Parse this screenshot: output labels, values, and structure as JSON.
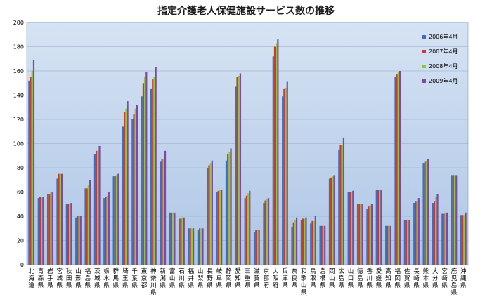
{
  "chart_data": {
    "type": "bar",
    "title": "指定介護老人保健施設サービス数の推移",
    "xlabel": "",
    "ylabel": "",
    "ylim": [
      0,
      200
    ],
    "yticks": [
      "0",
      "20",
      "40",
      "60",
      "80",
      "100",
      "120",
      "140",
      "160",
      "180",
      "200"
    ],
    "grid": true,
    "legend_position": "top-right",
    "categories": [
      "北海道",
      "青森県",
      "岩手県",
      "宮城県",
      "秋田県",
      "山形県",
      "福島県",
      "茨城県",
      "栃木県",
      "群馬県",
      "埼玉県",
      "千葉県",
      "東京都",
      "神奈川県",
      "新潟県",
      "富山県",
      "石川県",
      "福井県",
      "山梨県",
      "長野県",
      "岐阜県",
      "静岡県",
      "愛知県",
      "三重県",
      "滋賀県",
      "京都府",
      "大阪府",
      "兵庫県",
      "奈良県",
      "和歌山県",
      "鳥取県",
      "島根県",
      "岡山県",
      "広島県",
      "山口県",
      "徳島県",
      "香川県",
      "愛媛県",
      "高知県",
      "福岡県",
      "佐賀県",
      "長崎県",
      "熊本県",
      "大分県",
      "宮崎県",
      "鹿児島県",
      "沖縄県"
    ],
    "series": [
      {
        "name": "2006年4月",
        "color": "#3b6fc4",
        "values": [
          152,
          55,
          58,
          71,
          50,
          39,
          63,
          91,
          55,
          73,
          114,
          120,
          139,
          145,
          85,
          43,
          38,
          30,
          29,
          80,
          60,
          86,
          147,
          55,
          27,
          51,
          172,
          139,
          31,
          37,
          34,
          32,
          71,
          95,
          60,
          50,
          46,
          62,
          32,
          155,
          37,
          51,
          84,
          51,
          42,
          74,
          41
        ]
      },
      {
        "name": "2007年4月",
        "color": "#c43b30",
        "values": [
          155,
          56,
          58,
          75,
          50,
          40,
          63,
          94,
          56,
          73,
          126,
          124,
          150,
          153,
          87,
          43,
          38,
          30,
          30,
          82,
          61,
          91,
          155,
          57,
          29,
          53,
          180,
          145,
          35,
          38,
          36,
          32,
          72,
          99,
          60,
          50,
          48,
          62,
          32,
          157,
          37,
          52,
          85,
          52,
          42,
          74,
          41
        ]
      },
      {
        "name": "2008年4月",
        "color": "#97c23c",
        "values": [
          160,
          56,
          60,
          75,
          50,
          40,
          66,
          94,
          57,
          74,
          129,
          129,
          155,
          155,
          87,
          43,
          39,
          30,
          30,
          84,
          62,
          93,
          156,
          59,
          29,
          54,
          183,
          146,
          37,
          38,
          36,
          32,
          73,
          99,
          60,
          50,
          49,
          62,
          32,
          159,
          37,
          52,
          86,
          56,
          43,
          74,
          41
        ]
      },
      {
        "name": "2009年4月",
        "color": "#7c4aa6",
        "values": [
          169,
          56,
          60,
          75,
          51,
          40,
          70,
          98,
          60,
          75,
          135,
          132,
          159,
          163,
          94,
          43,
          39,
          30,
          30,
          86,
          62,
          96,
          158,
          61,
          29,
          55,
          186,
          151,
          39,
          39,
          40,
          32,
          74,
          105,
          61,
          50,
          50,
          62,
          32,
          160,
          37,
          55,
          87,
          58,
          43,
          74,
          43
        ]
      }
    ]
  }
}
